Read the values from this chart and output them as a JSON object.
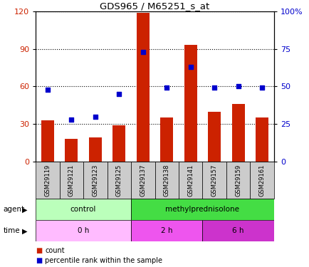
{
  "title": "GDS965 / M65251_s_at",
  "samples": [
    "GSM29119",
    "GSM29121",
    "GSM29123",
    "GSM29125",
    "GSM29137",
    "GSM29138",
    "GSM29141",
    "GSM29157",
    "GSM29159",
    "GSM29161"
  ],
  "counts": [
    33,
    18,
    19,
    29,
    119,
    35,
    93,
    40,
    46,
    35
  ],
  "percentile_ranks": [
    48,
    28,
    30,
    45,
    73,
    49,
    63,
    49,
    50,
    49
  ],
  "left_yaxis": {
    "min": 0,
    "max": 120,
    "ticks": [
      0,
      30,
      60,
      90,
      120
    ],
    "color": "#cc2200"
  },
  "right_yaxis": {
    "min": 0,
    "max": 100,
    "ticks": [
      0,
      25,
      50,
      75,
      100
    ],
    "color": "#0000cc"
  },
  "bar_color": "#cc2200",
  "scatter_color": "#0000cc",
  "agent_labels": [
    {
      "label": "control",
      "start": 0,
      "end": 4,
      "color": "#bbffbb"
    },
    {
      "label": "methylprednisolone",
      "start": 4,
      "end": 10,
      "color": "#44dd44"
    }
  ],
  "time_labels": [
    {
      "label": "0 h",
      "start": 0,
      "end": 4,
      "color": "#ffbbff"
    },
    {
      "label": "2 h",
      "start": 4,
      "end": 7,
      "color": "#ee55ee"
    },
    {
      "label": "6 h",
      "start": 7,
      "end": 10,
      "color": "#cc33cc"
    }
  ],
  "legend_count_color": "#cc2200",
  "legend_pct_color": "#0000cc",
  "background_color": "#ffffff",
  "tick_label_bg": "#cccccc",
  "left_ytick_color": "#cc2200",
  "right_ytick_color": "#0000cc"
}
